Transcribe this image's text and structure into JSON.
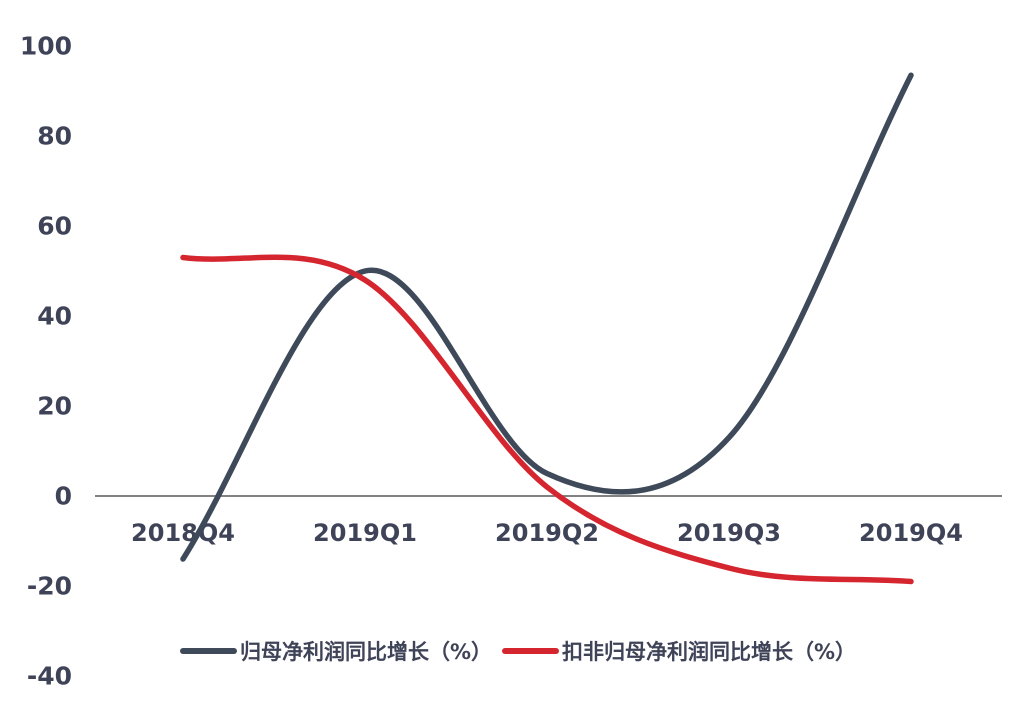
{
  "chart_data": {
    "type": "line",
    "title": "",
    "xlabel": "",
    "ylabel": "",
    "categories": [
      "2018Q4",
      "2019Q1",
      "2019Q2",
      "2019Q3",
      "2019Q4"
    ],
    "series": [
      {
        "name": "归母净利润同比增长（%）",
        "color": "#3e4a59",
        "values": [
          -14,
          50,
          5,
          13,
          93.5
        ]
      },
      {
        "name": "扣非归母净利润同比增长（%）",
        "color": "#d5262f",
        "values": [
          53,
          48,
          2,
          -16,
          -19
        ]
      }
    ],
    "yticks": [
      100,
      80,
      60,
      40,
      20,
      0,
      -20,
      -40
    ],
    "ylim": [
      -40,
      100
    ],
    "grid": false,
    "baseline_at_zero": true,
    "line_style": "smooth",
    "legend_position": "bottom",
    "axis_color": "#707070",
    "label_color": "#3f4358"
  }
}
